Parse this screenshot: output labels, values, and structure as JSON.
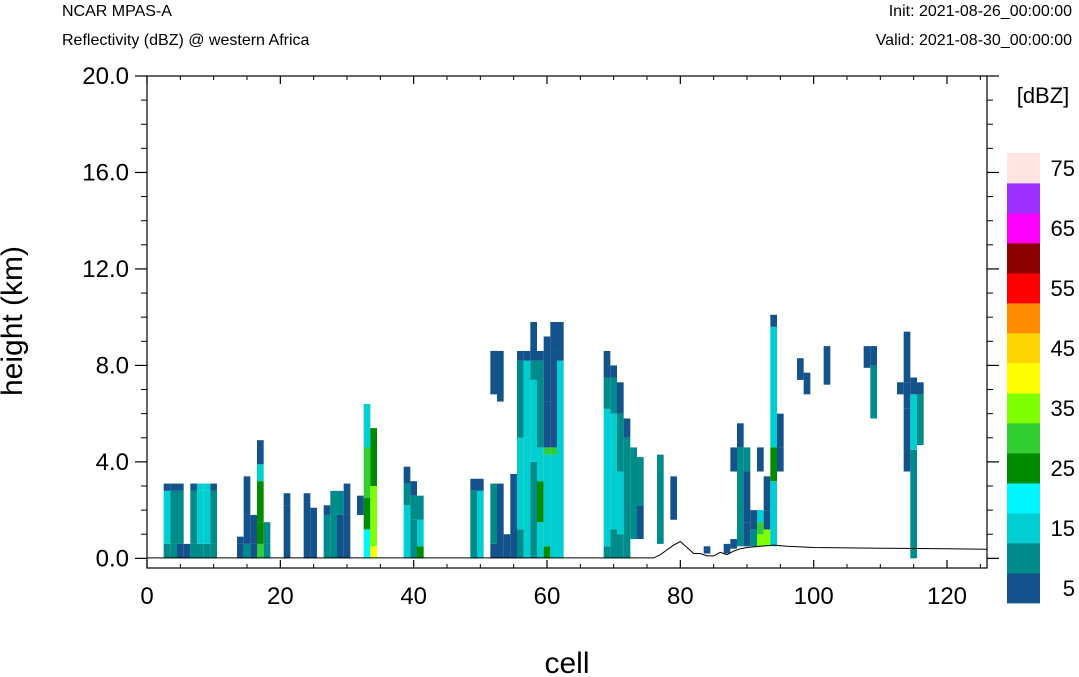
{
  "header": {
    "model": "NCAR MPAS-A",
    "field": "Reflectivity (dBZ) @ western Africa",
    "init": "Init: 2021-08-26_00:00:00",
    "valid": "Valid: 2021-08-30_00:00:00"
  },
  "chart_data": {
    "type": "heatmap",
    "xlabel": "cell",
    "ylabel": "height (km)",
    "xlim": [
      0,
      126
    ],
    "ylim": [
      -0.4,
      20.0
    ],
    "xticks": [
      0,
      20,
      40,
      60,
      80,
      100,
      120
    ],
    "xtick_labels": [
      "0",
      "20",
      "40",
      "60",
      "80",
      "100",
      "120"
    ],
    "yticks": [
      0,
      4,
      8,
      12,
      16,
      20
    ],
    "ytick_labels": [
      "0.0",
      "4.0",
      "8.0",
      "12.0",
      "16.0",
      "20.0"
    ],
    "colorbar": {
      "title": "[dBZ]",
      "levels": [
        5,
        10,
        15,
        20,
        25,
        30,
        35,
        40,
        45,
        50,
        55,
        60,
        65,
        70,
        75
      ],
      "labels": [
        "5",
        "15",
        "25",
        "35",
        "45",
        "55",
        "65",
        "75"
      ],
      "colors": [
        "#14528c",
        "#008b8b",
        "#00ced1",
        "#00f5ff",
        "#008b00",
        "#32cd32",
        "#7fff00",
        "#ffff00",
        "#ffd700",
        "#ff8c00",
        "#ff0000",
        "#8b0000",
        "#ff00ff",
        "#9b30ff",
        "#ffe4e1"
      ]
    },
    "terrain": [
      [
        0,
        0.02
      ],
      [
        76,
        0.02
      ],
      [
        77,
        0.15
      ],
      [
        78,
        0.35
      ],
      [
        79,
        0.55
      ],
      [
        80,
        0.7
      ],
      [
        81,
        0.45
      ],
      [
        82,
        0.2
      ],
      [
        83,
        0.2
      ],
      [
        84,
        0.1
      ],
      [
        85,
        0.1
      ],
      [
        86,
        0.25
      ],
      [
        87,
        0.15
      ],
      [
        88,
        0.3
      ],
      [
        89,
        0.4
      ],
      [
        90,
        0.45
      ],
      [
        92,
        0.5
      ],
      [
        94,
        0.55
      ],
      [
        96,
        0.5
      ],
      [
        100,
        0.45
      ],
      [
        110,
        0.42
      ],
      [
        120,
        0.4
      ],
      [
        126,
        0.38
      ]
    ],
    "columns": [
      {
        "x": 3,
        "segments": [
          [
            0,
            0.6,
            1
          ],
          [
            0.6,
            2.8,
            2
          ],
          [
            2.8,
            3.1,
            0
          ]
        ]
      },
      {
        "x": 4,
        "segments": [
          [
            0,
            0.6,
            1
          ],
          [
            0.6,
            2.8,
            1
          ],
          [
            2.8,
            3.1,
            0
          ]
        ]
      },
      {
        "x": 5,
        "segments": [
          [
            0,
            0.6,
            0
          ],
          [
            0.6,
            2.8,
            1
          ],
          [
            2.8,
            3.1,
            0
          ]
        ]
      },
      {
        "x": 6,
        "segments": [
          [
            0,
            0.6,
            0
          ]
        ]
      },
      {
        "x": 7,
        "segments": [
          [
            0,
            0.6,
            1
          ],
          [
            0.6,
            2.8,
            1
          ],
          [
            2.8,
            3.1,
            0
          ]
        ]
      },
      {
        "x": 8,
        "segments": [
          [
            0,
            0.6,
            1
          ],
          [
            0.6,
            2.8,
            2
          ],
          [
            2.8,
            3.1,
            2
          ]
        ]
      },
      {
        "x": 9,
        "segments": [
          [
            0,
            0.6,
            1
          ],
          [
            0.6,
            2.8,
            2
          ],
          [
            2.8,
            3.1,
            2
          ]
        ]
      },
      {
        "x": 10,
        "segments": [
          [
            0,
            0.6,
            1
          ],
          [
            0.6,
            2.8,
            1
          ],
          [
            2.8,
            3.1,
            0
          ]
        ]
      },
      {
        "x": 14,
        "segments": [
          [
            0,
            0.6,
            0
          ],
          [
            0.6,
            0.9,
            0
          ]
        ]
      },
      {
        "x": 15,
        "segments": [
          [
            0,
            0.6,
            1
          ],
          [
            0.6,
            1.8,
            0
          ],
          [
            1.8,
            3.4,
            0
          ]
        ]
      },
      {
        "x": 16,
        "segments": [
          [
            0,
            0.6,
            0
          ],
          [
            0.6,
            1.8,
            0
          ]
        ]
      },
      {
        "x": 17,
        "segments": [
          [
            0,
            0.6,
            5
          ],
          [
            0.6,
            1.5,
            4
          ],
          [
            1.5,
            3.2,
            4
          ],
          [
            3.2,
            3.9,
            2
          ],
          [
            3.9,
            4.9,
            0
          ]
        ]
      },
      {
        "x": 18,
        "segments": [
          [
            0,
            0.6,
            1
          ],
          [
            0.6,
            1.5,
            1
          ]
        ]
      },
      {
        "x": 21,
        "segments": [
          [
            0,
            2.2,
            0
          ],
          [
            2.2,
            2.7,
            0
          ]
        ]
      },
      {
        "x": 24,
        "segments": [
          [
            0,
            2.3,
            0
          ],
          [
            2.3,
            2.7,
            0
          ]
        ]
      },
      {
        "x": 25,
        "segments": [
          [
            0,
            2.1,
            0
          ]
        ]
      },
      {
        "x": 27,
        "segments": [
          [
            0,
            1.8,
            1
          ],
          [
            1.8,
            2.2,
            0
          ]
        ]
      },
      {
        "x": 28,
        "segments": [
          [
            0,
            1.8,
            1
          ],
          [
            1.8,
            2.8,
            1
          ]
        ]
      },
      {
        "x": 29,
        "segments": [
          [
            0,
            1.8,
            0
          ],
          [
            1.8,
            2.8,
            1
          ]
        ]
      },
      {
        "x": 30,
        "segments": [
          [
            0,
            1.8,
            0
          ],
          [
            1.8,
            3.1,
            0
          ]
        ]
      },
      {
        "x": 32,
        "segments": [
          [
            1.8,
            2.6,
            0
          ]
        ]
      },
      {
        "x": 33,
        "segments": [
          [
            0,
            1.2,
            3
          ],
          [
            1.2,
            2.5,
            4
          ],
          [
            2.5,
            4.6,
            5
          ],
          [
            4.6,
            5.4,
            2
          ],
          [
            5.4,
            6.4,
            2
          ]
        ]
      },
      {
        "x": 34,
        "segments": [
          [
            0,
            0.5,
            7
          ],
          [
            0.5,
            3.0,
            6
          ],
          [
            3.0,
            5.4,
            4
          ]
        ]
      },
      {
        "x": 39,
        "segments": [
          [
            0,
            2.2,
            2
          ],
          [
            2.2,
            3.1,
            1
          ],
          [
            3.1,
            3.8,
            0
          ]
        ]
      },
      {
        "x": 40,
        "segments": [
          [
            0,
            1.6,
            1
          ],
          [
            1.6,
            2.6,
            1
          ],
          [
            2.6,
            3.2,
            0
          ]
        ]
      },
      {
        "x": 41,
        "segments": [
          [
            0,
            0.5,
            4
          ],
          [
            0.5,
            1.6,
            2
          ],
          [
            1.6,
            2.6,
            1
          ]
        ]
      },
      {
        "x": 49,
        "segments": [
          [
            0,
            2.8,
            1
          ],
          [
            2.8,
            3.3,
            0
          ]
        ]
      },
      {
        "x": 50,
        "segments": [
          [
            0,
            2.8,
            2
          ],
          [
            2.8,
            3.3,
            0
          ]
        ]
      },
      {
        "x": 52,
        "segments": [
          [
            0,
            0.6,
            0
          ],
          [
            0.6,
            3.1,
            1
          ],
          [
            6.8,
            8.6,
            0
          ]
        ]
      },
      {
        "x": 53,
        "segments": [
          [
            0,
            3.1,
            0
          ],
          [
            6.5,
            8.6,
            0
          ]
        ]
      },
      {
        "x": 54,
        "segments": [
          [
            0,
            1.0,
            0
          ]
        ]
      },
      {
        "x": 55,
        "segments": [
          [
            0,
            3.5,
            0
          ]
        ]
      },
      {
        "x": 56,
        "segments": [
          [
            0,
            1.2,
            1
          ],
          [
            1.2,
            5.0,
            2
          ],
          [
            5.0,
            8.2,
            1
          ],
          [
            8.2,
            8.6,
            0
          ]
        ]
      },
      {
        "x": 57,
        "segments": [
          [
            0,
            5.0,
            2
          ],
          [
            5.0,
            8.2,
            2
          ],
          [
            8.2,
            8.6,
            0
          ]
        ]
      },
      {
        "x": 58,
        "segments": [
          [
            0,
            4.0,
            1
          ],
          [
            4.0,
            7.4,
            2
          ],
          [
            7.4,
            8.2,
            1
          ],
          [
            8.2,
            9.8,
            0
          ]
        ]
      },
      {
        "x": 59,
        "segments": [
          [
            0,
            1.5,
            2
          ],
          [
            1.5,
            3.2,
            4
          ],
          [
            3.2,
            4.6,
            2
          ],
          [
            4.6,
            8.2,
            1
          ],
          [
            8.2,
            8.6,
            0
          ]
        ]
      },
      {
        "x": 60,
        "segments": [
          [
            0,
            0.5,
            4
          ],
          [
            0.5,
            4.3,
            2
          ],
          [
            4.3,
            4.6,
            5
          ],
          [
            4.6,
            6.5,
            0
          ],
          [
            6.5,
            9.2,
            0
          ]
        ]
      },
      {
        "x": 61,
        "segments": [
          [
            0,
            4.3,
            2
          ],
          [
            4.3,
            4.6,
            5
          ],
          [
            4.6,
            8.6,
            0
          ],
          [
            8.6,
            9.8,
            0
          ]
        ]
      },
      {
        "x": 62,
        "segments": [
          [
            0,
            4.8,
            2
          ],
          [
            4.8,
            8.2,
            2
          ],
          [
            8.2,
            9.8,
            0
          ]
        ]
      },
      {
        "x": 69,
        "segments": [
          [
            0,
            0.5,
            1
          ],
          [
            0.5,
            6.2,
            2
          ],
          [
            6.2,
            7.5,
            1
          ],
          [
            7.5,
            8.6,
            0
          ]
        ]
      },
      {
        "x": 70,
        "segments": [
          [
            0,
            1.2,
            1
          ],
          [
            1.2,
            6.0,
            2
          ],
          [
            6.0,
            7.5,
            1
          ],
          [
            7.5,
            8.0,
            0
          ]
        ]
      },
      {
        "x": 71,
        "segments": [
          [
            0,
            1.0,
            1
          ],
          [
            1.0,
            3.6,
            2
          ],
          [
            3.6,
            6.0,
            1
          ],
          [
            6.0,
            7.3,
            0
          ]
        ]
      },
      {
        "x": 72,
        "segments": [
          [
            0,
            3.6,
            1
          ],
          [
            3.6,
            5.0,
            1
          ],
          [
            5.0,
            5.8,
            0
          ]
        ]
      },
      {
        "x": 73,
        "segments": [
          [
            0.8,
            2.0,
            1
          ],
          [
            2.0,
            4.6,
            1
          ]
        ]
      },
      {
        "x": 74,
        "segments": [
          [
            0.8,
            2.2,
            0
          ],
          [
            2.2,
            4.2,
            1
          ]
        ]
      },
      {
        "x": 77,
        "segments": [
          [
            0.6,
            4.3,
            1
          ]
        ]
      },
      {
        "x": 79,
        "segments": [
          [
            1.6,
            3.4,
            0
          ]
        ]
      },
      {
        "x": 84,
        "segments": [
          [
            0.2,
            0.5,
            0
          ]
        ]
      },
      {
        "x": 87,
        "segments": [
          [
            0.2,
            0.6,
            0
          ]
        ]
      },
      {
        "x": 88,
        "segments": [
          [
            0.4,
            0.8,
            0
          ],
          [
            3.6,
            4.6,
            0
          ]
        ]
      },
      {
        "x": 89,
        "segments": [
          [
            0.5,
            4.6,
            1
          ],
          [
            4.6,
            5.6,
            0
          ]
        ]
      },
      {
        "x": 90,
        "segments": [
          [
            0.5,
            1.5,
            0
          ],
          [
            1.5,
            3.6,
            0
          ],
          [
            3.6,
            4.6,
            1
          ]
        ]
      },
      {
        "x": 91,
        "segments": [
          [
            0.5,
            1.2,
            1
          ],
          [
            1.2,
            2.0,
            0
          ]
        ]
      },
      {
        "x": 92,
        "segments": [
          [
            0.5,
            1.0,
            6
          ],
          [
            1.0,
            1.5,
            5
          ],
          [
            1.5,
            2.0,
            2
          ],
          [
            3.6,
            4.6,
            0
          ]
        ]
      },
      {
        "x": 93,
        "segments": [
          [
            0.5,
            1.2,
            6
          ],
          [
            1.2,
            2.0,
            0
          ],
          [
            2.0,
            3.4,
            0
          ]
        ]
      },
      {
        "x": 94,
        "segments": [
          [
            0.5,
            3.2,
            2
          ],
          [
            3.2,
            4.6,
            4
          ],
          [
            4.6,
            9.6,
            2
          ],
          [
            9.6,
            10.1,
            0
          ]
        ]
      },
      {
        "x": 95,
        "segments": [
          [
            3.6,
            4.6,
            0
          ],
          [
            4.6,
            6.0,
            0
          ]
        ]
      },
      {
        "x": 98,
        "segments": [
          [
            7.4,
            8.3,
            0
          ]
        ]
      },
      {
        "x": 99,
        "segments": [
          [
            6.8,
            7.7,
            0
          ]
        ]
      },
      {
        "x": 102,
        "segments": [
          [
            7.2,
            8.8,
            0
          ]
        ]
      },
      {
        "x": 108,
        "segments": [
          [
            7.9,
            8.8,
            0
          ]
        ]
      },
      {
        "x": 109,
        "segments": [
          [
            5.8,
            8.0,
            1
          ],
          [
            8.0,
            8.8,
            0
          ]
        ]
      },
      {
        "x": 113,
        "segments": [
          [
            6.8,
            7.3,
            0
          ]
        ]
      },
      {
        "x": 114,
        "segments": [
          [
            3.6,
            6.2,
            0
          ],
          [
            6.2,
            7.3,
            0
          ],
          [
            7.3,
            9.4,
            0
          ]
        ]
      },
      {
        "x": 115,
        "segments": [
          [
            0,
            4.5,
            1
          ],
          [
            4.5,
            6.8,
            2
          ],
          [
            6.8,
            7.5,
            0
          ]
        ]
      },
      {
        "x": 116,
        "segments": [
          [
            4.7,
            6.8,
            1
          ],
          [
            6.8,
            7.3,
            0
          ]
        ]
      }
    ]
  }
}
